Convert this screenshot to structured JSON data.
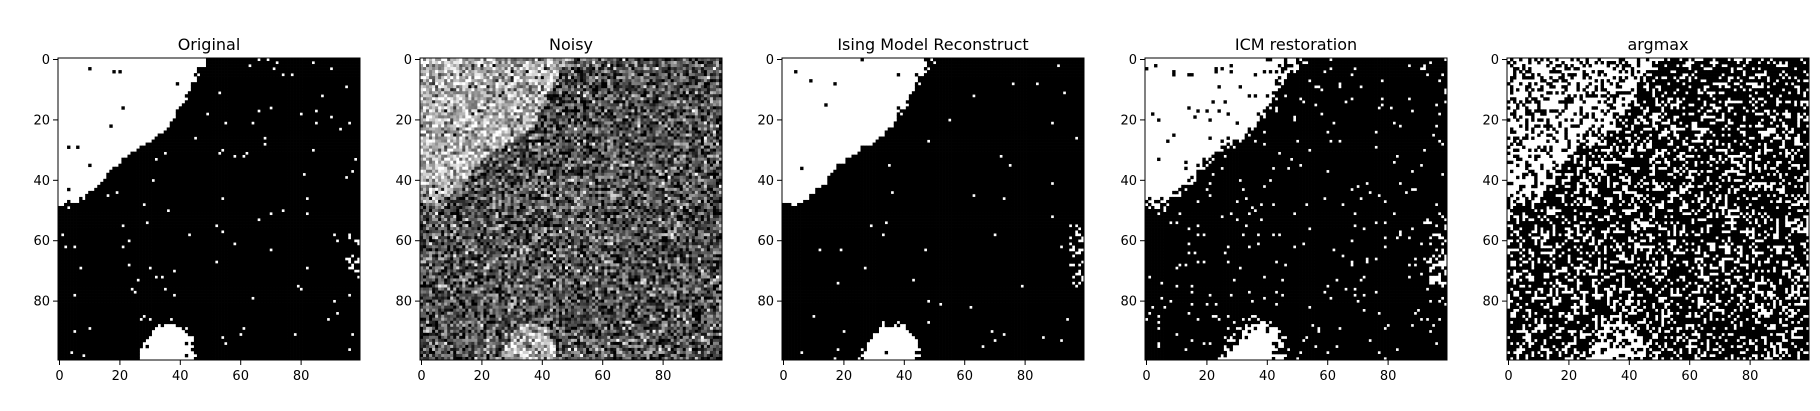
{
  "chart_data": [
    {
      "type": "heatmap",
      "title": "Original",
      "colormap": "binary",
      "grid_size": [
        100,
        100
      ],
      "xlim": [
        -0.5,
        99.5
      ],
      "ylim": [
        99.5,
        -0.5
      ],
      "xticks": [
        0,
        20,
        40,
        60,
        80
      ],
      "yticks": [
        0,
        20,
        40,
        60,
        80
      ],
      "grid": false,
      "values": "binary spin field: smooth black and white blobs with a light sprinkle of isolated flipped pixels"
    },
    {
      "type": "heatmap",
      "title": "Noisy",
      "colormap": "gray",
      "grid_size": [
        100,
        100
      ],
      "xlim": [
        -0.5,
        99.5
      ],
      "ylim": [
        99.5,
        -0.5
      ],
      "xticks": [
        0,
        20,
        40,
        60,
        80
      ],
      "yticks": [
        0,
        20,
        40,
        60,
        80
      ],
      "grid": false,
      "values": "original field plus heavy Gaussian noise, rendered in grayscale; underlying pattern faintly visible"
    },
    {
      "type": "heatmap",
      "title": "Ising Model Reconstruct",
      "colormap": "binary",
      "grid_size": [
        100,
        100
      ],
      "xlim": [
        -0.5,
        99.5
      ],
      "ylim": [
        99.5,
        -0.5
      ],
      "xticks": [
        0,
        20,
        40,
        60,
        80
      ],
      "yticks": [
        0,
        20,
        40,
        60,
        80
      ],
      "grid": false,
      "values": "close recovery of the original blobs with few residual isolated pixels"
    },
    {
      "type": "heatmap",
      "title": "ICM restoration",
      "colormap": "binary",
      "grid_size": [
        100,
        100
      ],
      "xlim": [
        -0.5,
        99.5
      ],
      "ylim": [
        99.5,
        -0.5
      ],
      "xticks": [
        0,
        20,
        40,
        60,
        80
      ],
      "yticks": [
        0,
        20,
        40,
        60,
        80
      ],
      "grid": false,
      "values": "blocky recovery of the original blobs with more holes and ragged edges"
    },
    {
      "type": "heatmap",
      "title": "argmax",
      "colormap": "binary",
      "grid_size": [
        100,
        100
      ],
      "xlim": [
        -0.5,
        99.5
      ],
      "ylim": [
        99.5,
        -0.5
      ],
      "xticks": [
        0,
        20,
        40,
        60,
        80
      ],
      "yticks": [
        0,
        20,
        40,
        60,
        80
      ],
      "grid": false,
      "values": "per-pixel thresholding of the noisy image: dense salt-and-pepper with the blob pattern barely visible"
    }
  ]
}
